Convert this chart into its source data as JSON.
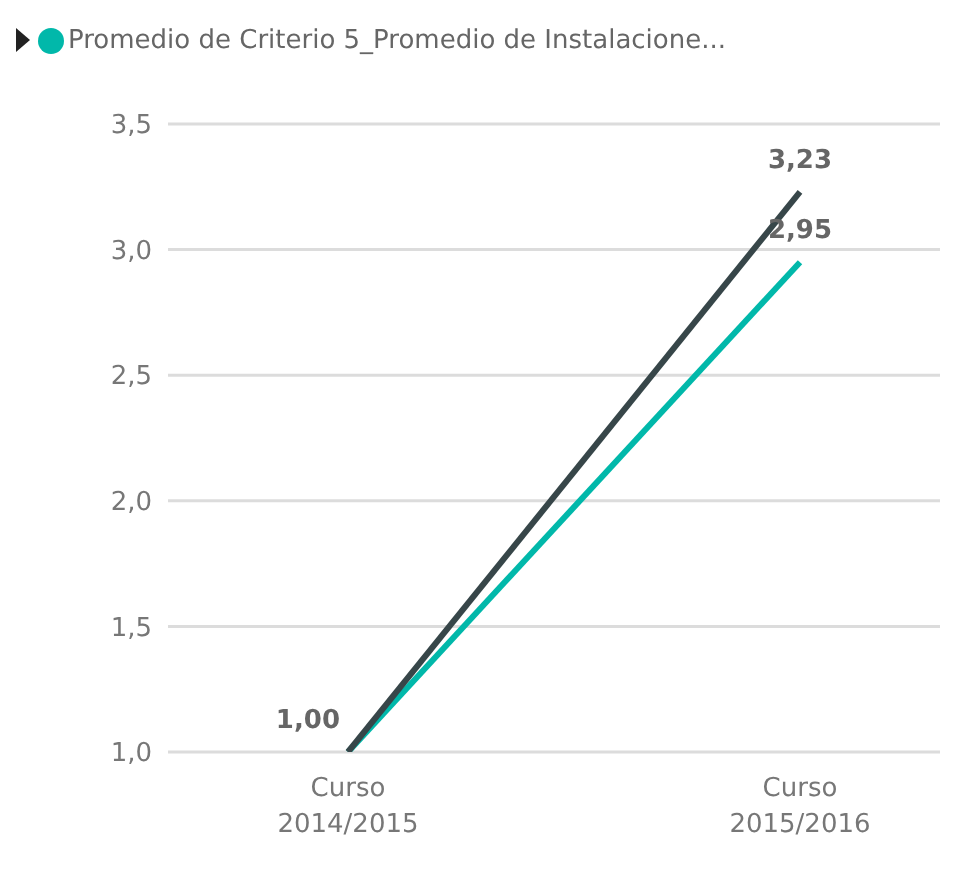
{
  "chart_data": {
    "type": "line",
    "categories": [
      "Curso 2014/2015",
      "Curso 2015/2016"
    ],
    "series": [
      {
        "name": "Promedio de Criterio 5_Promedio de Instalacione...",
        "color": "#01b8aa",
        "values": [
          1.0,
          2.95
        ],
        "value_labels": [
          null,
          "2,95"
        ]
      },
      {
        "color": "#374649",
        "values": [
          1.0,
          3.23
        ],
        "value_labels": [
          "1,00",
          "3,23"
        ]
      }
    ],
    "ylim": [
      1,
      3.5
    ],
    "yticks": [
      {
        "value": 1,
        "label": "1,0"
      },
      {
        "value": 1.5,
        "label": "1,5"
      },
      {
        "value": 2,
        "label": "2,0"
      },
      {
        "value": 2.5,
        "label": "2,5"
      },
      {
        "value": 3,
        "label": "3,0"
      },
      {
        "value": 3.5,
        "label": "3,5"
      }
    ],
    "grid": "y",
    "legend": "top left",
    "marker": "none"
  }
}
